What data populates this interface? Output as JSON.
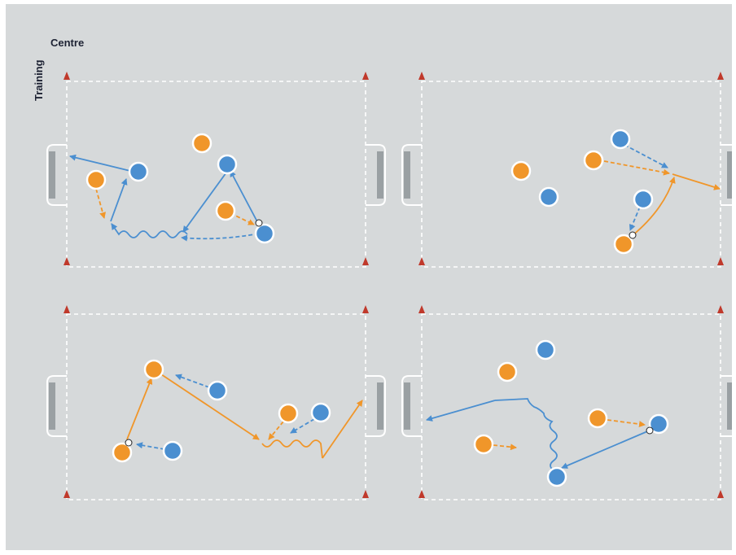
{
  "brand": {
    "word_top": "Centre",
    "word_side": "Training"
  },
  "colors": {
    "background": "#d6d9da",
    "lines": "#ffffff",
    "team_orange": "#f0962a",
    "team_blue": "#4b8fd0",
    "cone": "#c0392b",
    "goal": "#ffffff"
  },
  "icons": [
    "cone-icon",
    "goal-icon",
    "ball-icon",
    "player-orange",
    "player-blue"
  ],
  "diagrams": [
    {
      "name": "diagram-top-left",
      "players": {
        "orange": 3,
        "blue": 3
      }
    },
    {
      "name": "diagram-top-right",
      "players": {
        "orange": 3,
        "blue": 3
      }
    },
    {
      "name": "diagram-bottom-left",
      "players": {
        "orange": 3,
        "blue": 3
      }
    },
    {
      "name": "diagram-bottom-right",
      "players": {
        "orange": 3,
        "blue": 3
      }
    }
  ]
}
